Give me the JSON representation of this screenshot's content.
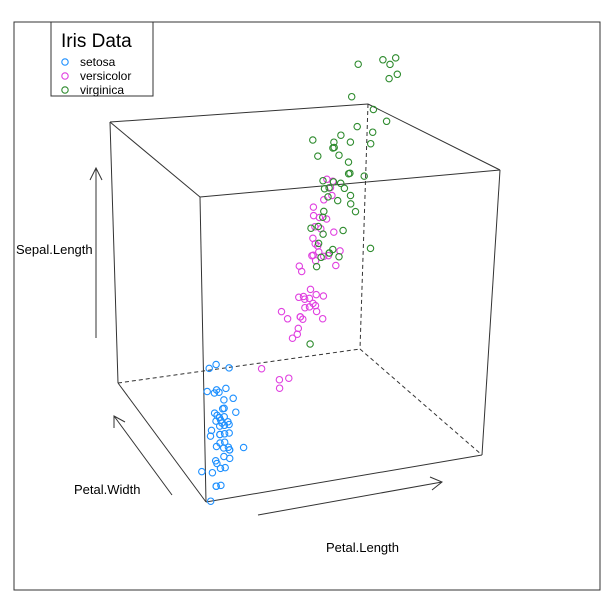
{
  "chart_data": {
    "type": "scatter",
    "title": "",
    "legend": {
      "title": "Iris Data",
      "placement": "top-left",
      "entries": [
        {
          "name": "setosa",
          "color": "#1E90FF"
        },
        {
          "name": "versicolor",
          "color": "#E040E0"
        },
        {
          "name": "virginica",
          "color": "#2E8B2E"
        }
      ]
    },
    "axes": {
      "x": "Petal.Length",
      "y": "Petal.Width",
      "z": "Sepal.Length"
    },
    "grid": false,
    "ranges": {
      "x": [
        1.0,
        6.9
      ],
      "y": [
        0.1,
        2.5
      ],
      "z": [
        4.3,
        7.9
      ]
    },
    "series": [
      {
        "name": "setosa",
        "color": "#1E90FF",
        "points": [
          [
            1.4,
            0.2,
            5.1
          ],
          [
            1.4,
            0.2,
            4.9
          ],
          [
            1.3,
            0.2,
            4.7
          ],
          [
            1.5,
            0.2,
            4.6
          ],
          [
            1.4,
            0.2,
            5.0
          ],
          [
            1.7,
            0.4,
            5.4
          ],
          [
            1.4,
            0.3,
            4.6
          ],
          [
            1.5,
            0.2,
            5.0
          ],
          [
            1.4,
            0.2,
            4.4
          ],
          [
            1.5,
            0.1,
            4.9
          ],
          [
            1.5,
            0.2,
            5.4
          ],
          [
            1.6,
            0.2,
            4.8
          ],
          [
            1.4,
            0.1,
            4.8
          ],
          [
            1.1,
            0.1,
            4.3
          ],
          [
            1.2,
            0.2,
            5.8
          ],
          [
            1.5,
            0.4,
            5.7
          ],
          [
            1.3,
            0.4,
            5.4
          ],
          [
            1.4,
            0.3,
            5.1
          ],
          [
            1.7,
            0.3,
            5.7
          ],
          [
            1.5,
            0.3,
            5.1
          ],
          [
            1.7,
            0.2,
            5.4
          ],
          [
            1.5,
            0.4,
            5.1
          ],
          [
            1.0,
            0.2,
            4.6
          ],
          [
            1.7,
            0.5,
            5.1
          ],
          [
            1.9,
            0.2,
            4.8
          ],
          [
            1.6,
            0.2,
            5.0
          ],
          [
            1.6,
            0.4,
            5.0
          ],
          [
            1.5,
            0.2,
            5.2
          ],
          [
            1.4,
            0.2,
            5.2
          ],
          [
            1.6,
            0.2,
            4.7
          ],
          [
            1.6,
            0.2,
            4.8
          ],
          [
            1.5,
            0.4,
            5.4
          ],
          [
            1.5,
            0.1,
            5.2
          ],
          [
            1.4,
            0.2,
            5.5
          ],
          [
            1.5,
            0.2,
            4.9
          ],
          [
            1.2,
            0.2,
            5.0
          ],
          [
            1.3,
            0.2,
            5.5
          ],
          [
            1.4,
            0.1,
            4.9
          ],
          [
            1.3,
            0.2,
            4.4
          ],
          [
            1.5,
            0.2,
            5.1
          ],
          [
            1.3,
            0.3,
            5.0
          ],
          [
            1.3,
            0.3,
            4.5
          ],
          [
            1.3,
            0.2,
            4.4
          ],
          [
            1.6,
            0.6,
            5.0
          ],
          [
            1.9,
            0.4,
            5.1
          ],
          [
            1.4,
            0.3,
            4.8
          ],
          [
            1.6,
            0.2,
            5.1
          ],
          [
            1.4,
            0.2,
            4.6
          ],
          [
            1.5,
            0.2,
            5.3
          ],
          [
            1.4,
            0.2,
            5.0
          ]
        ]
      },
      {
        "name": "versicolor",
        "color": "#E040E0",
        "points": [
          [
            4.7,
            1.4,
            7.0
          ],
          [
            4.5,
            1.5,
            6.4
          ],
          [
            4.9,
            1.5,
            6.9
          ],
          [
            4.0,
            1.3,
            5.5
          ],
          [
            4.6,
            1.5,
            6.5
          ],
          [
            4.5,
            1.3,
            5.7
          ],
          [
            4.7,
            1.6,
            6.3
          ],
          [
            3.3,
            1.0,
            4.9
          ],
          [
            4.6,
            1.3,
            6.6
          ],
          [
            3.9,
            1.4,
            5.2
          ],
          [
            3.5,
            1.0,
            5.0
          ],
          [
            4.2,
            1.5,
            5.9
          ],
          [
            4.0,
            1.0,
            6.0
          ],
          [
            4.7,
            1.4,
            6.1
          ],
          [
            3.6,
            1.3,
            5.6
          ],
          [
            4.4,
            1.4,
            6.7
          ],
          [
            4.5,
            1.5,
            5.6
          ],
          [
            4.1,
            1.0,
            5.8
          ],
          [
            4.5,
            1.5,
            6.2
          ],
          [
            3.9,
            1.1,
            5.6
          ],
          [
            4.8,
            1.8,
            5.9
          ],
          [
            4.0,
            1.3,
            6.1
          ],
          [
            4.9,
            1.5,
            6.3
          ],
          [
            4.7,
            1.2,
            6.1
          ],
          [
            4.3,
            1.3,
            6.4
          ],
          [
            4.4,
            1.4,
            6.6
          ],
          [
            4.8,
            1.4,
            6.8
          ],
          [
            5.0,
            1.7,
            6.7
          ],
          [
            4.5,
            1.5,
            6.0
          ],
          [
            3.5,
            1.0,
            5.7
          ],
          [
            3.8,
            1.1,
            5.5
          ],
          [
            3.7,
            1.0,
            5.5
          ],
          [
            3.9,
            1.2,
            5.8
          ],
          [
            5.1,
            1.6,
            6.0
          ],
          [
            4.5,
            1.5,
            5.4
          ],
          [
            4.5,
            1.6,
            6.0
          ],
          [
            4.7,
            1.5,
            6.7
          ],
          [
            4.4,
            1.3,
            6.3
          ],
          [
            4.1,
            1.3,
            5.6
          ],
          [
            4.0,
            1.3,
            5.5
          ],
          [
            4.4,
            1.2,
            5.5
          ],
          [
            4.6,
            1.4,
            6.1
          ],
          [
            4.0,
            1.2,
            5.8
          ],
          [
            3.3,
            1.0,
            5.0
          ],
          [
            4.2,
            1.3,
            5.6
          ],
          [
            4.2,
            1.2,
            5.7
          ],
          [
            4.2,
            1.3,
            5.7
          ],
          [
            4.3,
            1.3,
            6.2
          ],
          [
            3.0,
            1.1,
            5.1
          ],
          [
            4.1,
            1.3,
            5.7
          ]
        ]
      },
      {
        "name": "virginica",
        "color": "#2E8B2E",
        "points": [
          [
            6.0,
            2.5,
            6.3
          ],
          [
            5.1,
            1.9,
            5.8
          ],
          [
            5.9,
            2.1,
            7.1
          ],
          [
            5.6,
            1.8,
            6.3
          ],
          [
            5.8,
            2.2,
            6.5
          ],
          [
            6.6,
            2.1,
            7.6
          ],
          [
            4.5,
            1.7,
            4.9
          ],
          [
            6.3,
            1.8,
            7.3
          ],
          [
            5.8,
            1.8,
            6.7
          ],
          [
            6.1,
            2.5,
            7.2
          ],
          [
            5.1,
            2.0,
            6.5
          ],
          [
            5.3,
            1.9,
            6.4
          ],
          [
            5.5,
            2.1,
            6.8
          ],
          [
            5.0,
            2.0,
            5.7
          ],
          [
            5.1,
            2.4,
            5.8
          ],
          [
            5.3,
            2.3,
            6.4
          ],
          [
            5.5,
            1.8,
            6.5
          ],
          [
            6.7,
            2.2,
            7.7
          ],
          [
            6.9,
            2.3,
            7.7
          ],
          [
            5.0,
            1.5,
            6.0
          ],
          [
            5.7,
            2.3,
            6.9
          ],
          [
            4.9,
            2.0,
            5.6
          ],
          [
            6.7,
            2.0,
            7.7
          ],
          [
            4.9,
            1.8,
            6.3
          ],
          [
            5.7,
            2.1,
            6.7
          ],
          [
            6.0,
            1.8,
            7.2
          ],
          [
            4.8,
            1.8,
            6.2
          ],
          [
            4.9,
            1.8,
            6.1
          ],
          [
            5.6,
            2.1,
            6.4
          ],
          [
            5.8,
            1.6,
            7.2
          ],
          [
            6.1,
            1.9,
            7.4
          ],
          [
            6.4,
            2.0,
            7.9
          ],
          [
            5.6,
            2.2,
            6.4
          ],
          [
            5.1,
            1.5,
            6.3
          ],
          [
            5.6,
            1.4,
            6.1
          ],
          [
            6.1,
            2.3,
            7.7
          ],
          [
            5.6,
            2.4,
            6.3
          ],
          [
            5.5,
            1.8,
            6.4
          ],
          [
            4.8,
            1.8,
            6.0
          ],
          [
            5.4,
            2.1,
            6.9
          ],
          [
            5.6,
            2.4,
            6.7
          ],
          [
            5.1,
            2.3,
            6.9
          ],
          [
            5.1,
            1.9,
            5.8
          ],
          [
            5.9,
            2.3,
            6.8
          ],
          [
            5.7,
            2.5,
            6.7
          ],
          [
            5.2,
            2.3,
            6.7
          ],
          [
            5.0,
            1.9,
            6.3
          ],
          [
            5.2,
            2.0,
            6.5
          ],
          [
            5.4,
            2.3,
            6.2
          ],
          [
            5.1,
            1.8,
            5.9
          ]
        ]
      }
    ]
  }
}
